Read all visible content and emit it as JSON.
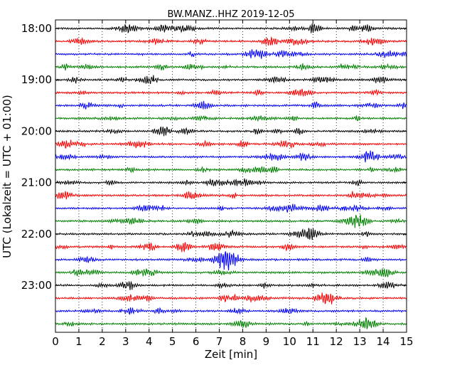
{
  "chart_data": {
    "type": "line",
    "title": "BW.MANZ..HHZ 2019-12-05",
    "xlabel": "Zeit  [min]",
    "ylabel": "UTC (Lokalzeit = UTC + 01:00)",
    "xlim": [
      0,
      15
    ],
    "x_ticks": [
      0,
      1,
      2,
      3,
      4,
      5,
      6,
      7,
      8,
      9,
      10,
      11,
      12,
      13,
      14,
      15
    ],
    "x_tick_labels": [
      "0",
      "1",
      "2",
      "3",
      "4",
      "5",
      "6",
      "7",
      "8",
      "9",
      "10",
      "11",
      "12",
      "13",
      "14",
      "15"
    ],
    "y_tick_labels": [
      "18:00",
      "19:00",
      "20:00",
      "21:00",
      "22:00",
      "23:00"
    ],
    "rows_per_hour": 4,
    "row_count": 24,
    "trace_colors": [
      "#000000",
      "#ff0000",
      "#0000ff",
      "#008000"
    ],
    "grid": "vertical dotted lines at each minute"
  }
}
